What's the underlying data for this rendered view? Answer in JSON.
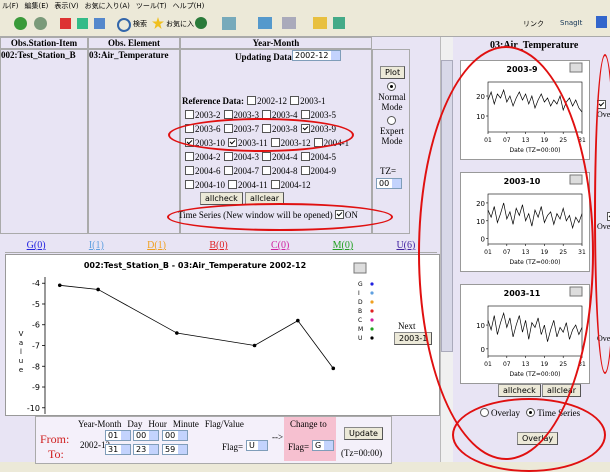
{
  "menu": [
    "ル(F)",
    "編集(E)",
    "表示(V)",
    "お気に入り(A)",
    "ツール(T)",
    "ヘルプ(H)"
  ],
  "toolbar": {
    "search": "検索",
    "favorites": "お気に入り",
    "links": "リンク",
    "snagit": "SnagIt"
  },
  "header": {
    "station_col": "Obs.Station-Item",
    "element_col": "Obs. Element",
    "month_col": "Year-Month"
  },
  "station": "002:Test_Station_B",
  "element": "03:Air_Temperature",
  "updating_label": "Updating Data:",
  "updating_value": "2002-12",
  "reference_label": "Reference Data:",
  "reference": [
    [
      {
        "label": "2002-12",
        "checked": false
      },
      {
        "label": "2003-1",
        "checked": false
      }
    ],
    [
      {
        "label": "2003-2",
        "checked": false
      },
      {
        "label": "2003-3",
        "checked": false
      },
      {
        "label": "2003-4",
        "checked": false
      },
      {
        "label": "2003-5",
        "checked": false
      }
    ],
    [
      {
        "label": "2003-6",
        "checked": false
      },
      {
        "label": "2003-7",
        "checked": false
      },
      {
        "label": "2003-8",
        "checked": false
      },
      {
        "label": "2003-9",
        "checked": true
      }
    ],
    [
      {
        "label": "2003-10",
        "checked": true
      },
      {
        "label": "2003-11",
        "checked": true
      },
      {
        "label": "2003-12",
        "checked": false
      },
      {
        "label": "2004-1",
        "checked": false
      }
    ],
    [
      {
        "label": "2004-2",
        "checked": false
      },
      {
        "label": "2004-3",
        "checked": false
      },
      {
        "label": "2004-4",
        "checked": false
      },
      {
        "label": "2004-5",
        "checked": false
      }
    ],
    [
      {
        "label": "2004-6",
        "checked": false
      },
      {
        "label": "2004-7",
        "checked": false
      },
      {
        "label": "2004-8",
        "checked": false
      },
      {
        "label": "2004-9",
        "checked": false
      }
    ],
    [
      {
        "label": "2004-10",
        "checked": false
      },
      {
        "label": "2004-11",
        "checked": false
      },
      {
        "label": "2004-12",
        "checked": false
      }
    ]
  ],
  "allcheck": "allcheck",
  "allclear": "allclear",
  "plot": "Plot",
  "normal_mode": "Normal Mode",
  "expert_mode": "Expert Mode",
  "tz_label": "TZ=",
  "tz_value": "00",
  "time_series_label": "Time Series (New window will be opened)",
  "time_series_on": "ON",
  "tabs": [
    {
      "label": "G(0)",
      "color": "#2020e0"
    },
    {
      "label": "I(1)",
      "color": "#60a0e0"
    },
    {
      "label": "D(1)",
      "color": "#f0a020"
    },
    {
      "label": "B(0)",
      "color": "#e02020"
    },
    {
      "label": "C(0)",
      "color": "#d020a0"
    },
    {
      "label": "M(0)",
      "color": "#20a020"
    },
    {
      "label": "U(6)",
      "color": "#4020a0"
    }
  ],
  "main_chart": {
    "type": "line",
    "title": "002:Test_Station_B - 03:Air_Temperature 2002-12",
    "ylabel": "Value",
    "xlim": [
      0,
      31
    ],
    "ylim": [
      -10.3,
      -3.7
    ],
    "yticks": [
      -4,
      -5,
      -6,
      -7,
      -8,
      -9,
      -10
    ],
    "x": [
      1.5,
      5.4,
      13.4,
      21.3,
      25.7,
      29.3
    ],
    "series": [
      {
        "name": "U",
        "color": "#000000",
        "values": [
          -4.1,
          -4.3,
          -6.4,
          -7.0,
          -5.8,
          -8.1
        ]
      }
    ],
    "legend": [
      {
        "name": "G",
        "color": "#2020e0"
      },
      {
        "name": "I",
        "color": "#60a0e0"
      },
      {
        "name": "D",
        "color": "#f0a020"
      },
      {
        "name": "B",
        "color": "#e02020"
      },
      {
        "name": "C",
        "color": "#d020a0"
      },
      {
        "name": "M",
        "color": "#20a020"
      },
      {
        "name": "U",
        "color": "#000000"
      }
    ]
  },
  "next_label": "Next",
  "next_value": "2003-1",
  "flag_table": {
    "headers": [
      "Year-Month",
      "Day",
      "Hour",
      "Minute",
      "Flag/Value"
    ],
    "change_to": "Change to",
    "from": "From:",
    "to": "To:",
    "year_month": "2002-12",
    "from_values": [
      "01",
      "00",
      "00"
    ],
    "to_values": [
      "31",
      "23",
      "59"
    ],
    "flag_label": "Flag=",
    "flag_value": "U",
    "arrow": "-->",
    "change_flag": "G",
    "update": "Update",
    "tz": "(Tz=00:00)"
  },
  "right_panel": {
    "title": "03:Air_Temperature",
    "mini_charts": [
      {
        "type": "line",
        "title": "2003-9",
        "xlabel": "Date (TZ=00:00)",
        "xlim": [
          1,
          31
        ],
        "ylim": [
          2,
          27
        ],
        "yticks": [
          10,
          20
        ],
        "xticks": [
          {
            "value": 1,
            "label": "01"
          },
          {
            "value": 7,
            "label": "07"
          },
          13,
          19,
          25,
          31
        ],
        "values": [
          18,
          22,
          16,
          21,
          19,
          23,
          17,
          20,
          15,
          19,
          22,
          18,
          21,
          16,
          20,
          14,
          18,
          21,
          17,
          19,
          15,
          18,
          16,
          20,
          13,
          17,
          19,
          15,
          18,
          14,
          12
        ]
      },
      {
        "type": "line",
        "title": "2003-10",
        "xlabel": "Date (TZ=00:00)",
        "xlim": [
          1,
          31
        ],
        "ylim": [
          -3,
          25
        ],
        "yticks": [
          0,
          10,
          20
        ],
        "xticks": [
          {
            "value": 1,
            "label": "01"
          },
          {
            "value": 7,
            "label": "07"
          },
          13,
          19,
          25,
          31
        ],
        "values": [
          16,
          12,
          18,
          9,
          14,
          20,
          11,
          15,
          8,
          17,
          13,
          19,
          10,
          14,
          7,
          16,
          12,
          18,
          9,
          13,
          15,
          8,
          14,
          11,
          17,
          10,
          13,
          6,
          12,
          9,
          14
        ]
      },
      {
        "type": "line",
        "title": "2003-11",
        "xlabel": "Date (TZ=00:00)",
        "xlim": [
          1,
          31
        ],
        "ylim": [
          -3,
          18
        ],
        "yticks": [
          0,
          10
        ],
        "xticks": [
          {
            "value": 1,
            "label": "01"
          },
          {
            "value": 7,
            "label": "07"
          },
          13,
          19,
          25,
          31
        ],
        "values": [
          12,
          8,
          14,
          6,
          11,
          15,
          9,
          13,
          5,
          10,
          14,
          7,
          12,
          4,
          11,
          9,
          13,
          6,
          10,
          3,
          8,
          12,
          5,
          9,
          7,
          11,
          4,
          8,
          10,
          6,
          9
        ]
      }
    ],
    "overlay_check": "Ove",
    "allcheck": "allcheck",
    "allclear": "allclear",
    "overlay_radio": "Overlay",
    "time_series_radio": "Time Series",
    "overlay_button": "Overlay"
  }
}
